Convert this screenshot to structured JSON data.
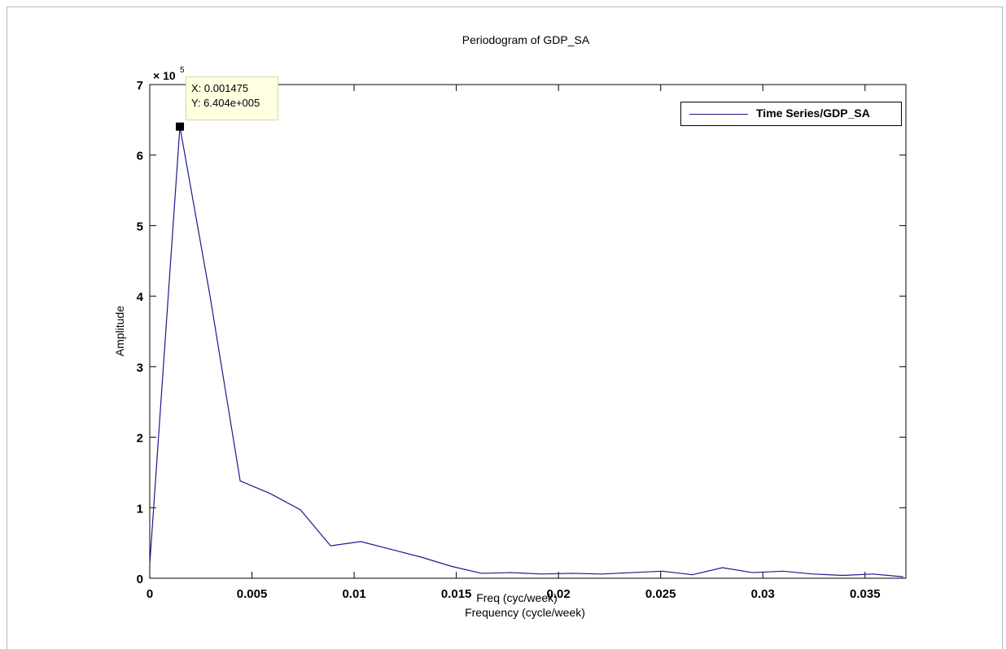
{
  "chart_data": {
    "type": "line",
    "title": "Periodogram of GDP_SA",
    "xlabel": "Frequency (cycle/week)",
    "xlabel_overlay": "Freq (cyc/week)",
    "ylabel": "Amplitude",
    "y_exponent_label": "× 10",
    "y_exponent_power": "5",
    "xlim": [
      0,
      0.037
    ],
    "ylim": [
      0,
      7
    ],
    "x_ticks": [
      0,
      0.005,
      0.01,
      0.015,
      0.02,
      0.025,
      0.03,
      0.035
    ],
    "x_tick_labels": [
      "0",
      "0.005",
      "0.01",
      "0.015",
      "0.02",
      "0.025",
      "0.03",
      "0.035"
    ],
    "y_ticks": [
      0,
      1,
      2,
      3,
      4,
      5,
      6,
      7
    ],
    "y_tick_labels": [
      "0",
      "1",
      "2",
      "3",
      "4",
      "5",
      "6",
      "7"
    ],
    "grid": false,
    "legend_position": "top-right",
    "series": [
      {
        "name": "Time Series/GDP_SA",
        "color": "#1a1a8c",
        "x": [
          0,
          0.001475,
          0.00295,
          0.004425,
          0.0059,
          0.007375,
          0.00885,
          0.010325,
          0.0118,
          0.013275,
          0.01475,
          0.016225,
          0.0177,
          0.019175,
          0.02065,
          0.022125,
          0.0236,
          0.025075,
          0.02655,
          0.028025,
          0.0295,
          0.030975,
          0.03245,
          0.033925,
          0.0354,
          0.036875
        ],
        "y": [
          0.2,
          6.404,
          4.0,
          1.38,
          1.2,
          0.97,
          0.46,
          0.52,
          0.41,
          0.3,
          0.17,
          0.07,
          0.08,
          0.06,
          0.07,
          0.06,
          0.08,
          0.1,
          0.05,
          0.15,
          0.08,
          0.1,
          0.06,
          0.04,
          0.06,
          0.02
        ]
      }
    ],
    "datatip": {
      "x_text": "X: 0.001475",
      "y_text": "Y: 6.404e+005",
      "x": 0.001475,
      "y": 6.404
    }
  }
}
